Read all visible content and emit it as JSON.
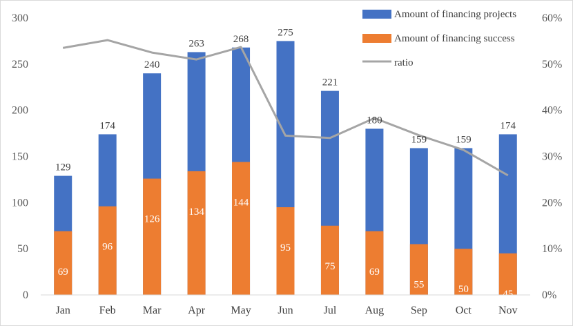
{
  "chart_data": {
    "type": "bar",
    "stacked": false,
    "categories": [
      "Jan",
      "Feb",
      "Mar",
      "Apr",
      "May",
      "Jun",
      "Jul",
      "Aug",
      "Sep",
      "Oct",
      "Nov"
    ],
    "series": [
      {
        "name": "Amount of financing projects",
        "kind": "bar",
        "axis": "left",
        "color": "#4472C4",
        "values": [
          129,
          174,
          240,
          263,
          268,
          275,
          221,
          180,
          159,
          159,
          174
        ]
      },
      {
        "name": "Amount of financing success",
        "kind": "bar",
        "axis": "left",
        "color": "#ED7D31",
        "values": [
          69,
          96,
          126,
          134,
          144,
          95,
          75,
          69,
          55,
          50,
          45
        ]
      },
      {
        "name": "ratio",
        "kind": "line",
        "axis": "right",
        "color": "#A5A5A5",
        "values": [
          0.535,
          0.552,
          0.525,
          0.51,
          0.537,
          0.345,
          0.34,
          0.383,
          0.346,
          0.314,
          0.259
        ]
      }
    ],
    "y_left": {
      "min": 0,
      "max": 300,
      "ticks": [
        "0",
        "50",
        "100",
        "150",
        "200",
        "250",
        "300"
      ]
    },
    "y_right": {
      "min": 0,
      "max": 0.6,
      "ticks": [
        "0%",
        "10%",
        "20%",
        "30%",
        "40%",
        "50%",
        "60%"
      ]
    },
    "legend": {
      "position": "top-right",
      "items": [
        "Amount of financing projects",
        "Amount of financing success",
        "ratio"
      ]
    },
    "grid": false
  }
}
